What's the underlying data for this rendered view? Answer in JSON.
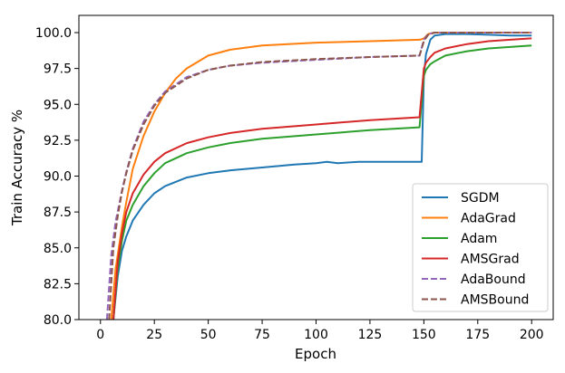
{
  "chart_data": {
    "type": "line",
    "xlabel": "Epoch",
    "ylabel": "Train Accuracy %",
    "xlim": [
      -10,
      210
    ],
    "ylim": [
      80,
      101.2
    ],
    "xticks": [
      0,
      25,
      50,
      75,
      100,
      125,
      150,
      175,
      200
    ],
    "yticks": [
      80.0,
      82.5,
      85.0,
      87.5,
      90.0,
      92.5,
      95.0,
      97.5,
      100.0
    ],
    "xtick_labels": [
      "0",
      "25",
      "50",
      "75",
      "100",
      "125",
      "150",
      "175",
      "200"
    ],
    "ytick_labels": [
      "80.0",
      "82.5",
      "85.0",
      "87.5",
      "90.0",
      "92.5",
      "95.0",
      "97.5",
      "100.0"
    ],
    "grid": false,
    "legend_position": "lower-right",
    "series": [
      {
        "name": "SGDM",
        "color": "#1f77b4",
        "dash": "solid",
        "x": [
          6,
          8,
          10,
          12,
          15,
          20,
          25,
          30,
          40,
          50,
          60,
          75,
          90,
          100,
          105,
          110,
          120,
          130,
          140,
          148,
          149,
          150,
          151,
          153,
          155,
          160,
          170,
          180,
          190,
          200
        ],
        "y": [
          80.0,
          83.0,
          84.8,
          85.8,
          86.9,
          88.0,
          88.8,
          89.3,
          89.9,
          90.2,
          90.4,
          90.6,
          90.8,
          90.9,
          91.0,
          90.9,
          91.0,
          91.0,
          91.0,
          91.0,
          91.0,
          97.0,
          98.5,
          99.5,
          99.8,
          99.9,
          99.9,
          99.85,
          99.8,
          99.8
        ]
      },
      {
        "name": "AdaGrad",
        "color": "#ff7f0e",
        "dash": "solid",
        "x": [
          5,
          7,
          10,
          12,
          15,
          20,
          25,
          30,
          35,
          40,
          50,
          60,
          75,
          100,
          125,
          148,
          150,
          152,
          155,
          160,
          200
        ],
        "y": [
          80.0,
          83.5,
          86.5,
          88.2,
          90.5,
          92.8,
          94.5,
          95.8,
          96.8,
          97.5,
          98.4,
          98.8,
          99.1,
          99.3,
          99.4,
          99.5,
          99.6,
          99.9,
          100.0,
          100.0,
          100.0
        ]
      },
      {
        "name": "Adam",
        "color": "#2ca02c",
        "dash": "solid",
        "x": [
          6,
          8,
          10,
          12,
          15,
          20,
          25,
          30,
          40,
          50,
          60,
          75,
          100,
          125,
          148,
          150,
          151,
          153,
          155,
          160,
          170,
          180,
          190,
          200
        ],
        "y": [
          80.0,
          83.5,
          85.5,
          86.9,
          88.0,
          89.3,
          90.2,
          90.9,
          91.6,
          92.0,
          92.3,
          92.6,
          92.9,
          93.2,
          93.4,
          97.0,
          97.4,
          97.8,
          98.0,
          98.4,
          98.7,
          98.9,
          99.0,
          99.1
        ]
      },
      {
        "name": "AMSGrad",
        "color": "#d62728",
        "dash": "solid",
        "x": [
          6,
          8,
          10,
          12,
          15,
          20,
          25,
          30,
          40,
          50,
          60,
          75,
          100,
          125,
          148,
          150,
          151,
          153,
          155,
          160,
          170,
          180,
          190,
          200
        ],
        "y": [
          80.0,
          84.0,
          86.0,
          87.5,
          88.8,
          90.1,
          91.0,
          91.6,
          92.3,
          92.7,
          93.0,
          93.3,
          93.6,
          93.9,
          94.1,
          97.5,
          97.9,
          98.3,
          98.6,
          98.9,
          99.2,
          99.4,
          99.5,
          99.6
        ]
      },
      {
        "name": "AdaBound",
        "color": "#9467bd",
        "dash": "dashed",
        "x": [
          3,
          5,
          7,
          10,
          12,
          15,
          20,
          25,
          30,
          40,
          50,
          60,
          75,
          100,
          125,
          148,
          150,
          152,
          155,
          160,
          200
        ],
        "y": [
          80.0,
          84.5,
          86.8,
          89.0,
          90.3,
          91.9,
          93.8,
          95.0,
          95.9,
          96.9,
          97.4,
          97.7,
          97.9,
          98.1,
          98.3,
          98.4,
          99.5,
          99.9,
          100.0,
          100.0,
          100.0
        ]
      },
      {
        "name": "AMSBound",
        "color": "#8c564b",
        "dash": "dashed",
        "x": [
          4,
          6,
          8,
          10,
          12,
          15,
          20,
          25,
          30,
          40,
          50,
          60,
          75,
          100,
          125,
          148,
          150,
          152,
          155,
          160,
          200
        ],
        "y": [
          80.0,
          85.0,
          87.2,
          88.9,
          90.2,
          91.8,
          93.6,
          94.9,
          95.8,
          96.8,
          97.4,
          97.7,
          97.95,
          98.15,
          98.3,
          98.4,
          99.4,
          99.85,
          100.0,
          100.0,
          100.0
        ]
      }
    ]
  }
}
